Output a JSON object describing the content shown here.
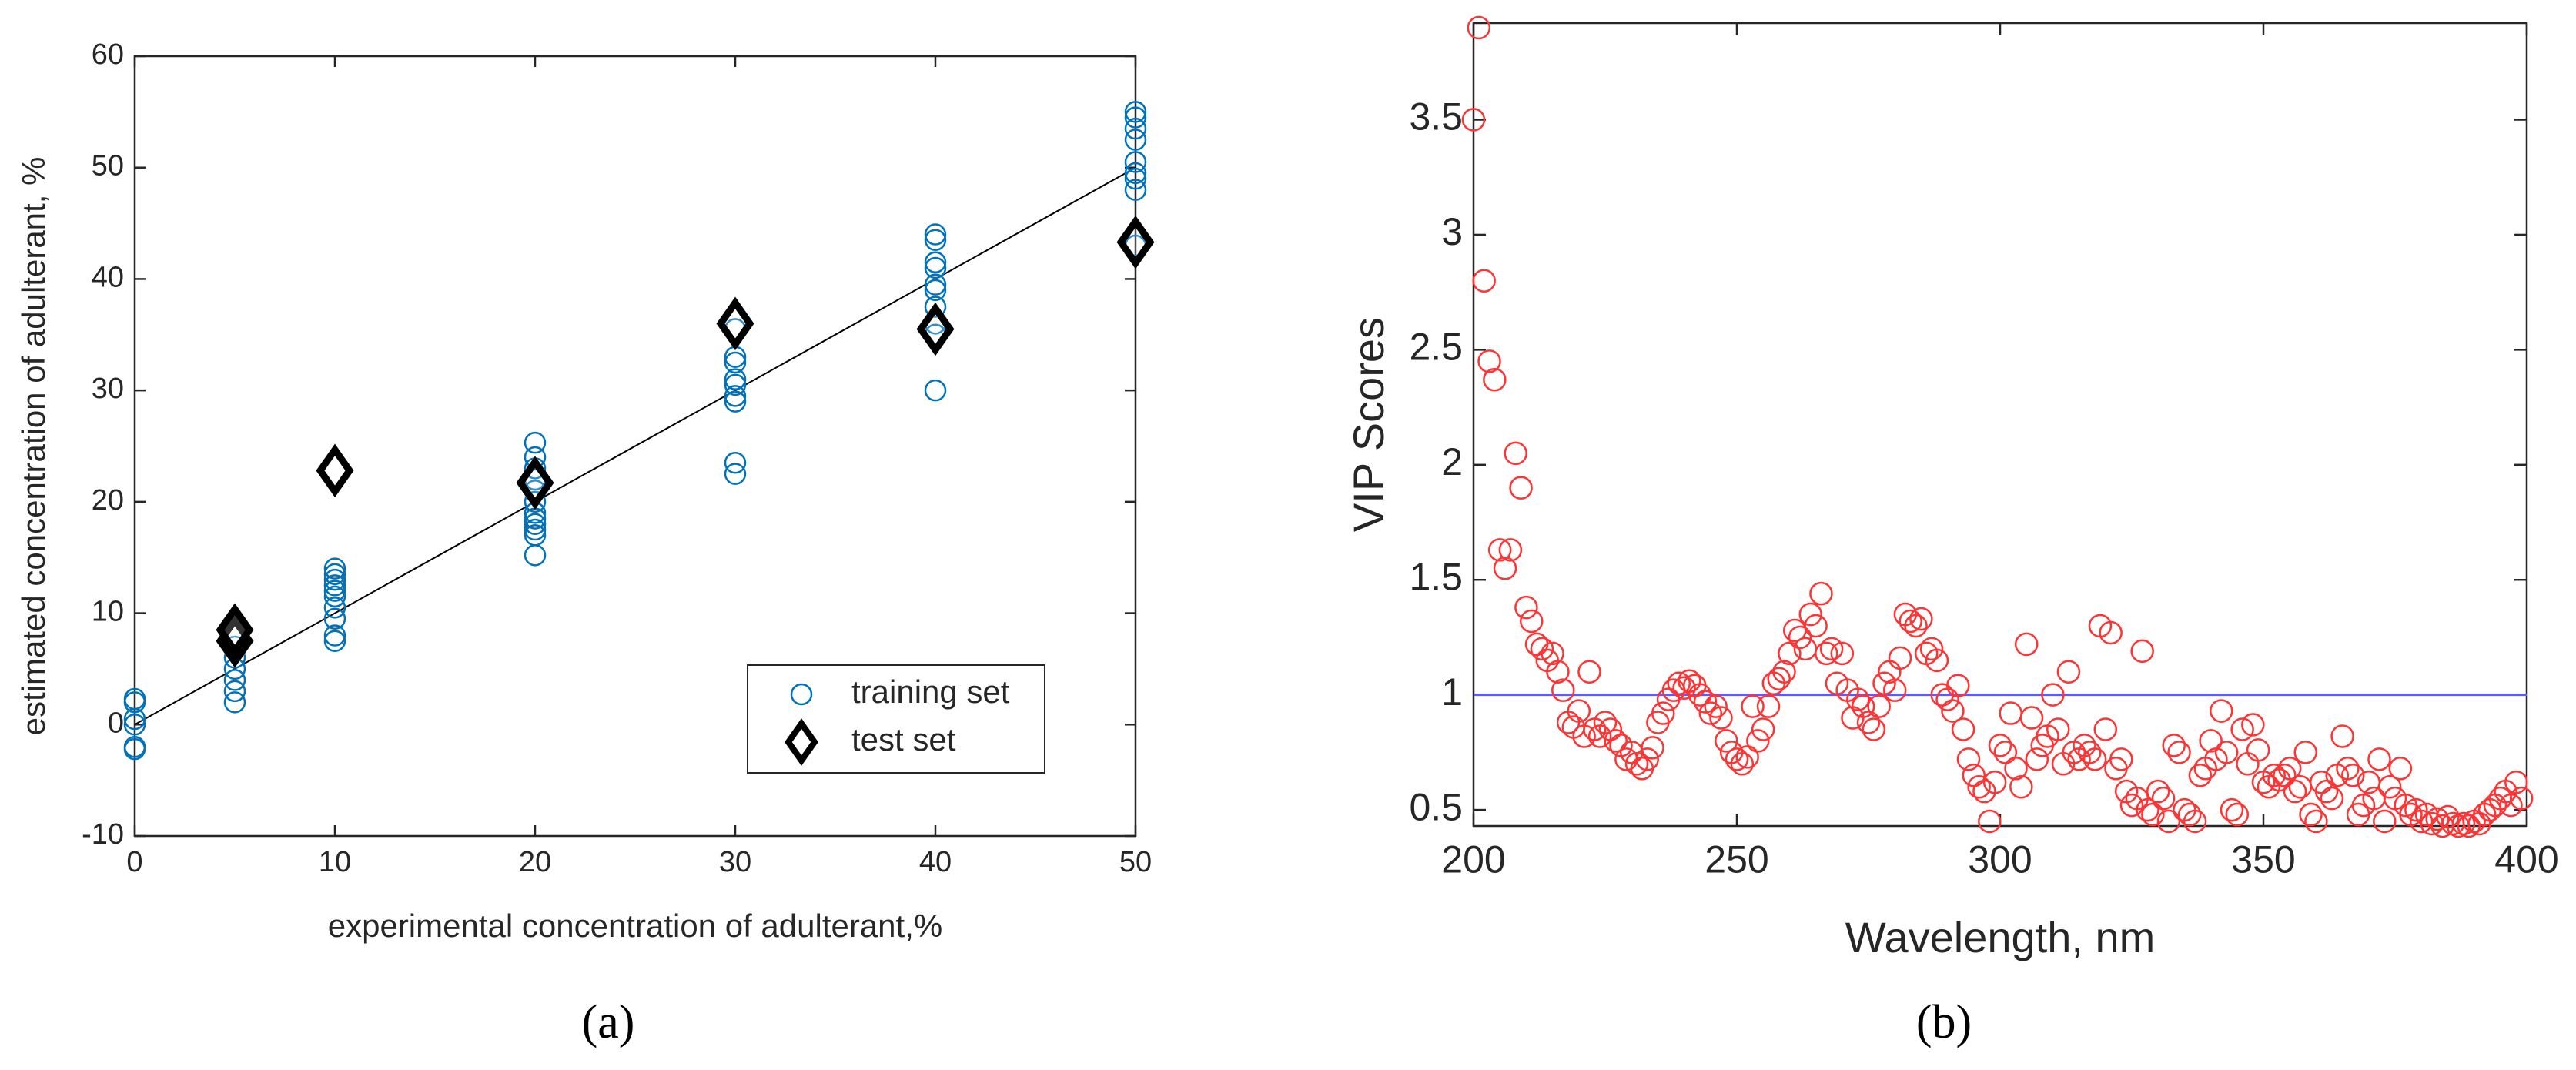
{
  "chart_data": [
    {
      "type": "scatter",
      "caption": "(a)",
      "x_label": "experimental concentration of adulterant,%",
      "y_label": "estimated concentration of adulterant, %",
      "xlim": [
        0,
        50
      ],
      "ylim": [
        -10,
        60
      ],
      "xticks": [
        0,
        10,
        20,
        30,
        40,
        50
      ],
      "yticks": [
        -10,
        0,
        10,
        20,
        30,
        40,
        50,
        60
      ],
      "legend": "lower right",
      "reference_line": {
        "color": "#000000",
        "x": [
          0,
          50
        ],
        "values": [
          0,
          50
        ]
      },
      "series": [
        {
          "name": "training set",
          "color": "#0072BD",
          "marker": "circle",
          "x": [
            0,
            0,
            0,
            0,
            0,
            0,
            5,
            5,
            5,
            5,
            5,
            5,
            5,
            10,
            10,
            10,
            10,
            10,
            10,
            10,
            10,
            10,
            10,
            20,
            20,
            20,
            20,
            20,
            20,
            20,
            20,
            20,
            20,
            20,
            20,
            30,
            30,
            30,
            30,
            30,
            30,
            30,
            30,
            30,
            40,
            40,
            40,
            40,
            40,
            40,
            40,
            40,
            40,
            40,
            50,
            50,
            50,
            50,
            50,
            50,
            50,
            50,
            50
          ],
          "values": [
            -2.2,
            -2,
            0,
            0.5,
            2,
            2.3,
            2,
            3,
            4,
            5,
            6,
            7,
            8,
            7.5,
            8,
            9.5,
            10.5,
            11.5,
            12,
            12.5,
            13,
            13.5,
            14,
            15.2,
            17,
            17.5,
            18,
            18.5,
            19,
            20,
            21,
            22,
            23,
            24,
            25.3,
            22.5,
            23.5,
            29,
            29.5,
            30.5,
            31,
            32.5,
            33,
            35.5,
            30,
            35,
            36,
            37.5,
            39,
            39.5,
            41,
            41.5,
            43.5,
            44,
            43,
            48,
            49,
            49.5,
            50.5,
            52.5,
            53.5,
            54.5,
            55
          ]
        },
        {
          "name": "test set",
          "color": "#000000",
          "marker": "diamond",
          "x": [
            5,
            5,
            10,
            20,
            30,
            40,
            50
          ],
          "values": [
            7.5,
            8.5,
            22.8,
            21.7,
            36,
            35.5,
            43.3
          ]
        }
      ]
    },
    {
      "type": "scatter",
      "caption": "(b)",
      "x_label": "Wavelength, nm",
      "y_label": "VIP Scores",
      "xlim": [
        200,
        400
      ],
      "ylim": [
        0.43,
        3.92
      ],
      "xticks": [
        200,
        250,
        300,
        350,
        400
      ],
      "yticks": [
        0.5,
        1,
        1.5,
        2,
        2.5,
        3,
        3.5
      ],
      "threshold": {
        "value": 1,
        "color": "#5b5bff"
      },
      "series": [
        {
          "color": "#ff3333",
          "marker": "circle",
          "x": [
            200,
            201,
            202,
            203,
            204,
            205,
            206,
            207,
            208,
            209,
            210,
            211,
            212,
            213,
            214,
            215,
            216,
            217,
            218,
            219,
            220,
            221,
            222,
            223,
            224,
            225,
            226,
            227,
            228,
            229,
            230,
            231,
            232,
            233,
            234,
            235,
            236,
            237,
            238,
            239,
            240,
            241,
            242,
            243,
            244,
            245,
            246,
            247,
            248,
            249,
            250,
            251,
            252,
            253,
            254,
            255,
            256,
            257,
            258,
            259,
            260,
            261,
            262,
            263,
            264,
            265,
            266,
            267,
            268,
            269,
            270,
            271,
            272,
            273,
            274,
            275,
            276,
            277,
            278,
            279,
            280,
            281,
            282,
            283,
            284,
            285,
            286,
            287,
            288,
            289,
            290,
            291,
            292,
            293,
            294,
            295,
            296,
            297,
            298,
            299,
            300,
            301,
            302,
            303,
            304,
            305,
            306,
            307,
            308,
            309,
            310,
            311,
            312,
            313,
            314,
            315,
            316,
            317,
            318,
            319,
            320,
            321,
            322,
            323,
            324,
            325,
            326,
            327,
            328,
            329,
            330,
            331,
            332,
            333,
            334,
            335,
            336,
            337,
            338,
            339,
            340,
            341,
            342,
            343,
            344,
            345,
            346,
            347,
            348,
            349,
            350,
            351,
            352,
            353,
            354,
            355,
            356,
            357,
            358,
            359,
            360,
            361,
            362,
            363,
            364,
            365,
            366,
            367,
            368,
            369,
            370,
            371,
            372,
            373,
            374,
            375,
            376,
            377,
            378,
            379,
            380,
            381,
            382,
            383,
            384,
            385,
            386,
            387,
            388,
            389,
            390,
            391,
            392,
            393,
            394,
            395,
            396,
            397,
            398,
            399
          ],
          "values": [
            3.5,
            3.9,
            2.8,
            2.45,
            2.37,
            1.63,
            1.55,
            1.63,
            2.05,
            1.9,
            1.38,
            1.32,
            1.22,
            1.2,
            1.15,
            1.18,
            1.1,
            1.02,
            0.88,
            0.86,
            0.93,
            0.82,
            1.1,
            0.85,
            0.82,
            0.88,
            0.85,
            0.8,
            0.78,
            0.72,
            0.75,
            0.7,
            0.68,
            0.72,
            0.77,
            0.88,
            0.92,
            0.98,
            1.02,
            1.05,
            1.03,
            1.06,
            1.04,
            1.0,
            0.97,
            0.92,
            0.95,
            0.9,
            0.8,
            0.75,
            0.72,
            0.7,
            0.73,
            0.95,
            0.8,
            0.85,
            0.95,
            1.05,
            1.07,
            1.1,
            1.18,
            1.28,
            1.25,
            1.2,
            1.35,
            1.3,
            1.44,
            1.18,
            1.2,
            1.05,
            1.18,
            1.02,
            0.9,
            0.98,
            0.95,
            0.88,
            0.85,
            0.95,
            1.05,
            1.1,
            1.02,
            1.16,
            1.35,
            1.32,
            1.3,
            1.33,
            1.18,
            1.2,
            1.15,
            1.0,
            0.98,
            0.93,
            1.04,
            0.85,
            0.72,
            0.65,
            0.6,
            0.58,
            0.45,
            0.62,
            0.78,
            0.75,
            0.92,
            0.68,
            0.6,
            1.22,
            0.9,
            0.72,
            0.78,
            0.82,
            1.0,
            0.85,
            0.7,
            1.1,
            0.75,
            0.72,
            0.78,
            0.75,
            0.72,
            1.3,
            0.85,
            1.27,
            0.68,
            0.72,
            0.58,
            0.52,
            0.55,
            1.19,
            0.5,
            0.48,
            0.58,
            0.55,
            0.45,
            0.78,
            0.75,
            0.5,
            0.48,
            0.45,
            0.65,
            0.68,
            0.8,
            0.72,
            0.93,
            0.75,
            0.5,
            0.48,
            0.85,
            0.7,
            0.87,
            0.76,
            0.62,
            0.6,
            0.65,
            0.63,
            0.65,
            0.68,
            0.58,
            0.6,
            0.75,
            0.48,
            0.45,
            0.62,
            0.58,
            0.55,
            0.65,
            0.82,
            0.68,
            0.65,
            0.48,
            0.52,
            0.62,
            0.55,
            0.72,
            0.45,
            0.6,
            0.55,
            0.68,
            0.52,
            0.48,
            0.5,
            0.45,
            0.48,
            0.44,
            0.46,
            0.43,
            0.47,
            0.44,
            0.43,
            0.44,
            0.43,
            0.45,
            0.44,
            0.48,
            0.5,
            0.52,
            0.55,
            0.58,
            0.52,
            0.62,
            0.55
          ]
        }
      ]
    }
  ]
}
